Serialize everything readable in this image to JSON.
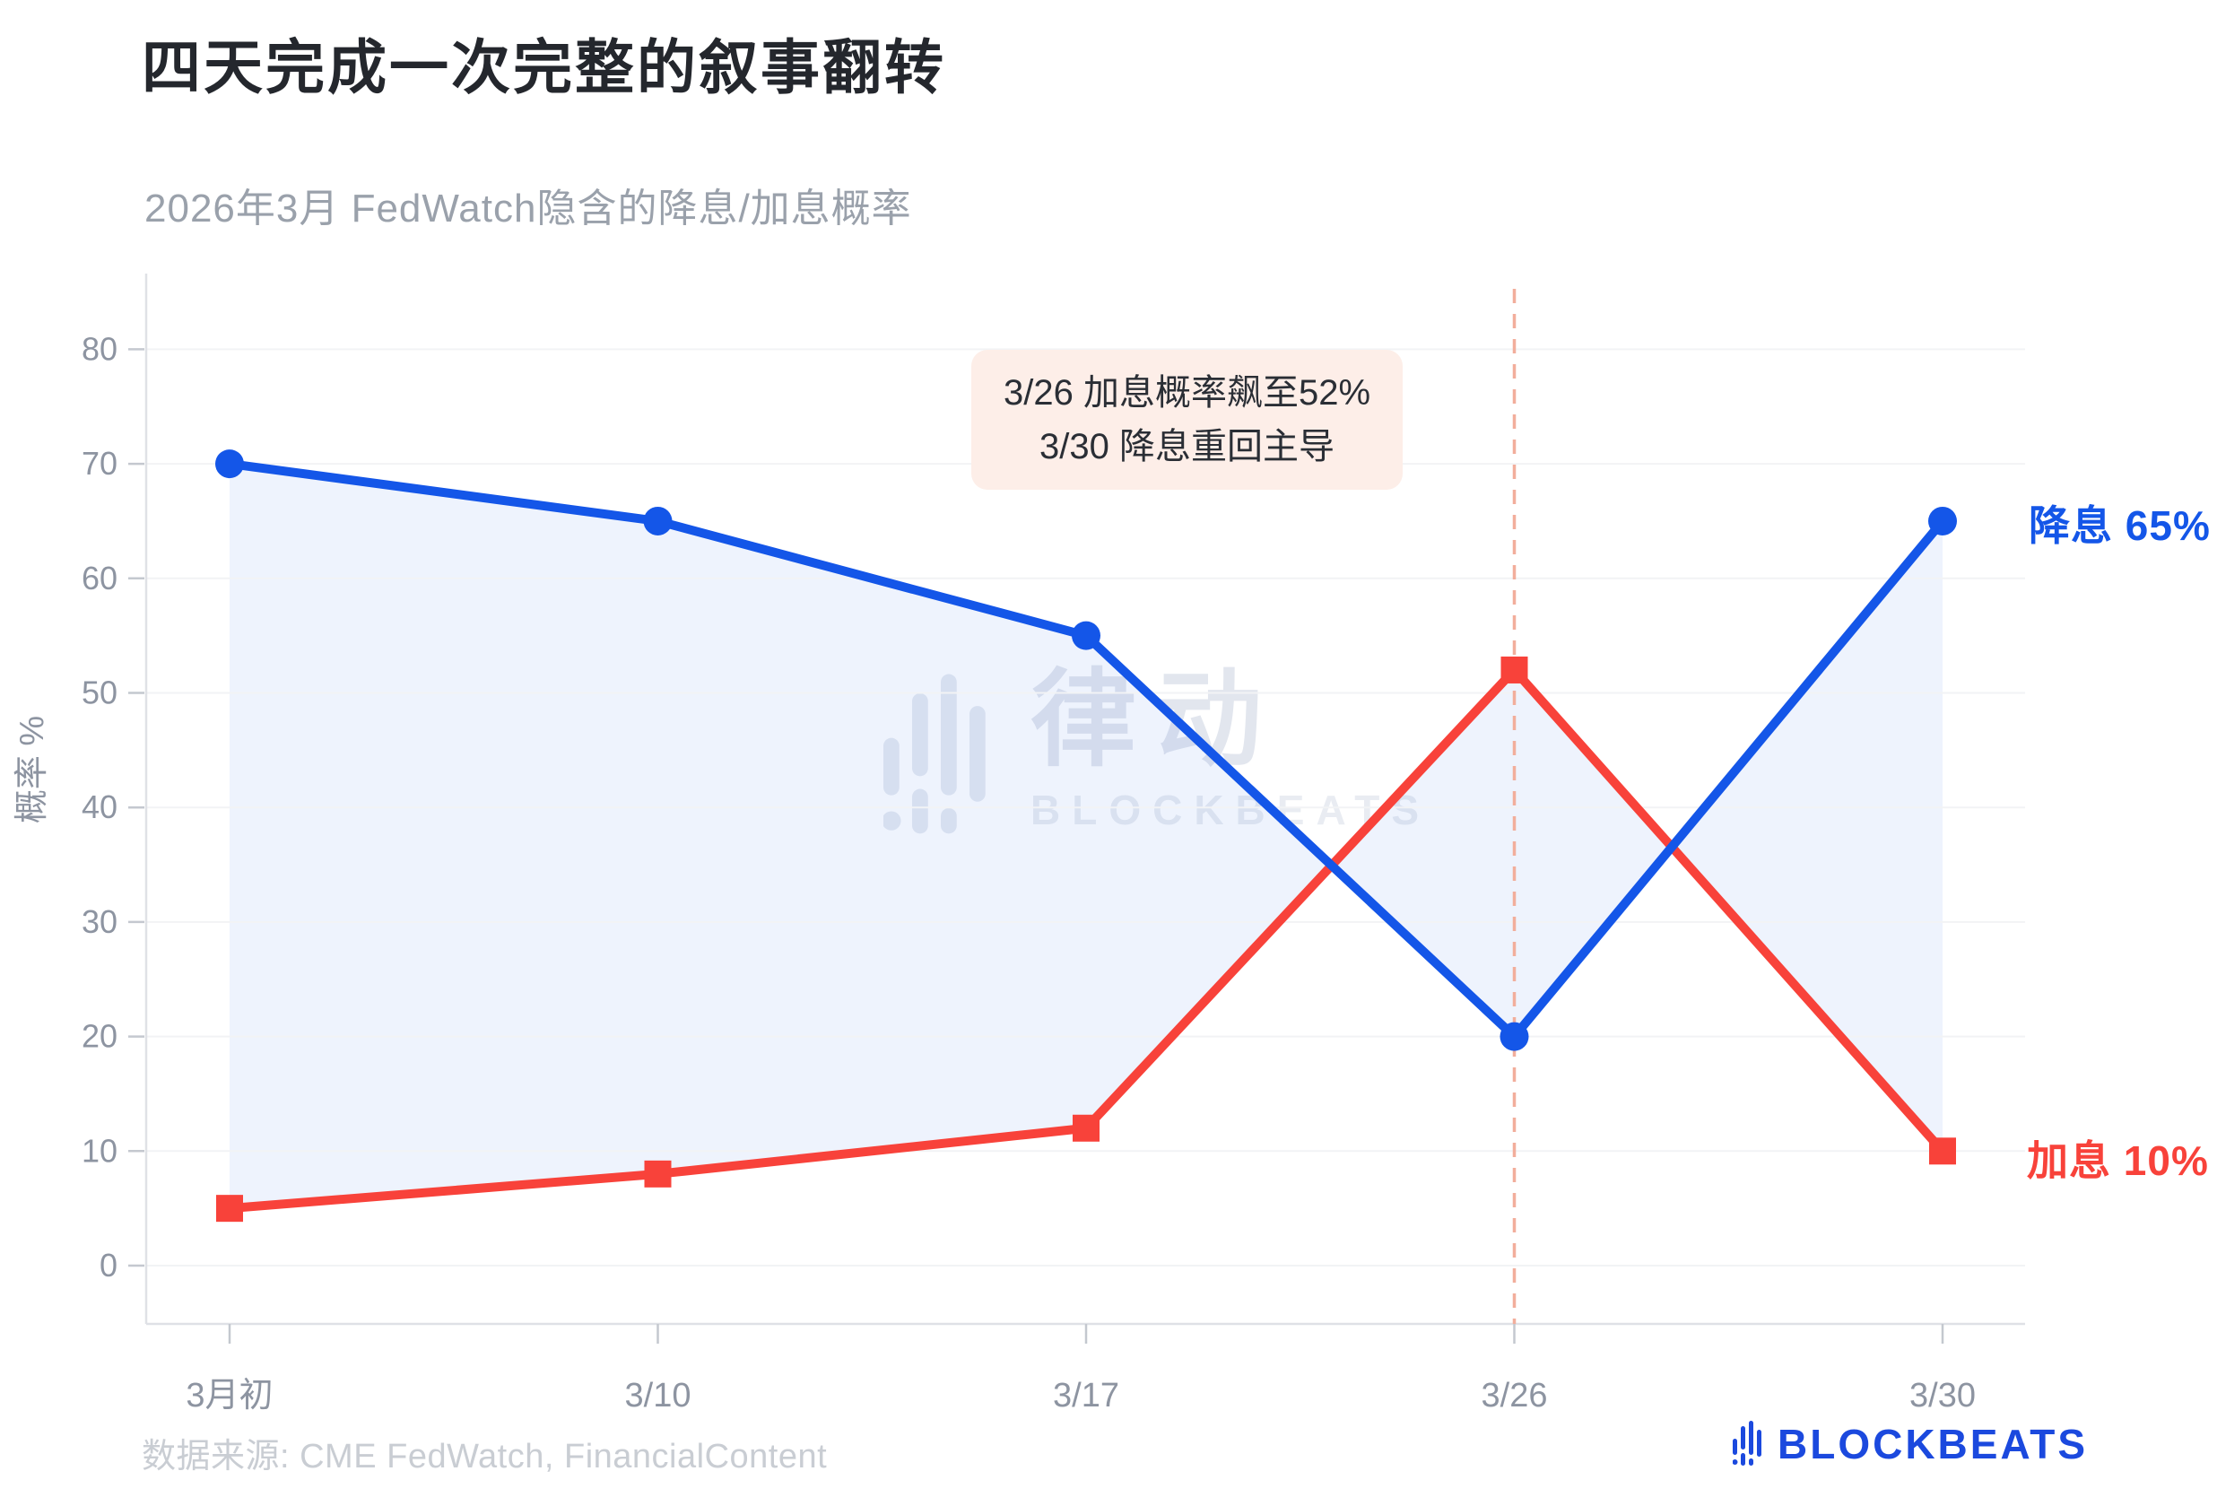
{
  "header": {
    "title": "四天完成一次完整的叙事翻转",
    "subtitle": "2026年3月 FedWatch隐含的降息/加息概率"
  },
  "chart_data": {
    "type": "line",
    "title": "2026年3月 FedWatch隐含的降息/加息概率",
    "categories": [
      "3月初",
      "3/10",
      "3/17",
      "3/26",
      "3/30"
    ],
    "series": [
      {
        "name": "降息",
        "color": "#1456e8",
        "marker": "circle",
        "values": [
          70,
          65,
          55,
          20,
          65
        ]
      },
      {
        "name": "加息",
        "color": "#f8423a",
        "marker": "square",
        "values": [
          5,
          8,
          12,
          52,
          10
        ]
      }
    ],
    "xlabel": "",
    "ylabel": "概率 %",
    "yticks": [
      0,
      10,
      20,
      30,
      40,
      50,
      60,
      70,
      80
    ],
    "ylim": [
      -5,
      85
    ],
    "grid": "horizontal",
    "legend_position": "right-end-labels",
    "fill_between_series": true,
    "fill_color": "rgba(21,86,232,0.07)",
    "vline_at": "3/26",
    "vline_style": "dashed",
    "vline_color": "#f2ae9c"
  },
  "annotation": {
    "line1": "3/26 加息概率飙至52%",
    "line2": "3/30 降息重回主导"
  },
  "end_labels": {
    "cut": "降息 65%",
    "hike": "加息 10%"
  },
  "watermark": {
    "cn": "律动",
    "en": "BLOCKBEATS"
  },
  "footer": {
    "source": "数据来源: CME FedWatch, FinancialContent",
    "brand": "BLOCKBEATS"
  },
  "colors": {
    "cut_blue": "#1456e8",
    "hike_red": "#f8423a",
    "fill_light_blue": "rgba(21,86,232,0.07)",
    "vline_salmon": "#f2ae9c",
    "annotation_bg": "#fdeee8",
    "title_dark": "#24272d",
    "subtitle_gray": "#9aa1ab",
    "tick_gray": "#8d94a1",
    "grid_gray": "#f2f3f5",
    "axis_gray": "#dfe1e6",
    "source_gray": "#c9cdd3",
    "logo_blue": "#1b49de",
    "watermark_gray": "#e2e6ee"
  }
}
